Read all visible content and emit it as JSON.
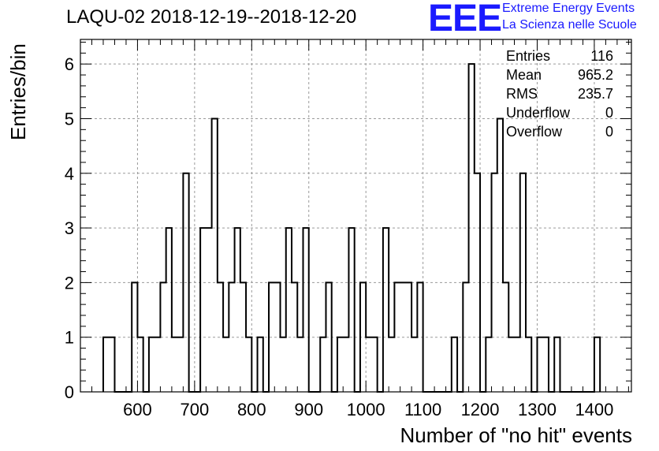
{
  "chart_data": {
    "type": "bar",
    "title": "LAQU-02 2018-12-19--2018-12-20",
    "xlabel": "Number of \"no hit\" events",
    "ylabel": "Entries/bin",
    "xlim": [
      500,
      1465
    ],
    "ylim": [
      0,
      6.45
    ],
    "bin_width": 10,
    "grid": true,
    "x_ticks": [
      600,
      700,
      800,
      900,
      1000,
      1100,
      1200,
      1300,
      1400
    ],
    "y_ticks": [
      0,
      1,
      2,
      3,
      4,
      5,
      6
    ],
    "bins": [
      {
        "x": 540,
        "y": 1
      },
      {
        "x": 550,
        "y": 1
      },
      {
        "x": 590,
        "y": 2
      },
      {
        "x": 600,
        "y": 1
      },
      {
        "x": 620,
        "y": 1
      },
      {
        "x": 630,
        "y": 1
      },
      {
        "x": 640,
        "y": 2
      },
      {
        "x": 650,
        "y": 3
      },
      {
        "x": 660,
        "y": 1
      },
      {
        "x": 670,
        "y": 1
      },
      {
        "x": 680,
        "y": 4
      },
      {
        "x": 710,
        "y": 3
      },
      {
        "x": 720,
        "y": 3
      },
      {
        "x": 730,
        "y": 5
      },
      {
        "x": 740,
        "y": 2
      },
      {
        "x": 750,
        "y": 1
      },
      {
        "x": 760,
        "y": 2
      },
      {
        "x": 770,
        "y": 3
      },
      {
        "x": 780,
        "y": 2
      },
      {
        "x": 790,
        "y": 1
      },
      {
        "x": 810,
        "y": 1
      },
      {
        "x": 830,
        "y": 2
      },
      {
        "x": 840,
        "y": 2
      },
      {
        "x": 850,
        "y": 1
      },
      {
        "x": 860,
        "y": 3
      },
      {
        "x": 870,
        "y": 2
      },
      {
        "x": 880,
        "y": 1
      },
      {
        "x": 890,
        "y": 3
      },
      {
        "x": 920,
        "y": 1
      },
      {
        "x": 930,
        "y": 2
      },
      {
        "x": 950,
        "y": 1
      },
      {
        "x": 960,
        "y": 1
      },
      {
        "x": 970,
        "y": 3
      },
      {
        "x": 990,
        "y": 2
      },
      {
        "x": 1000,
        "y": 1
      },
      {
        "x": 1010,
        "y": 1
      },
      {
        "x": 1030,
        "y": 3
      },
      {
        "x": 1040,
        "y": 1
      },
      {
        "x": 1050,
        "y": 2
      },
      {
        "x": 1060,
        "y": 2
      },
      {
        "x": 1070,
        "y": 2
      },
      {
        "x": 1080,
        "y": 1
      },
      {
        "x": 1090,
        "y": 2
      },
      {
        "x": 1150,
        "y": 1
      },
      {
        "x": 1170,
        "y": 2
      },
      {
        "x": 1180,
        "y": 6
      },
      {
        "x": 1190,
        "y": 4
      },
      {
        "x": 1210,
        "y": 1
      },
      {
        "x": 1220,
        "y": 4
      },
      {
        "x": 1230,
        "y": 5
      },
      {
        "x": 1240,
        "y": 2
      },
      {
        "x": 1250,
        "y": 1
      },
      {
        "x": 1260,
        "y": 1
      },
      {
        "x": 1270,
        "y": 4
      },
      {
        "x": 1280,
        "y": 1
      },
      {
        "x": 1300,
        "y": 1
      },
      {
        "x": 1310,
        "y": 1
      },
      {
        "x": 1330,
        "y": 1
      },
      {
        "x": 1400,
        "y": 1
      }
    ]
  },
  "stats": {
    "rows": [
      {
        "label": "Entries",
        "value": "116"
      },
      {
        "label": "Mean",
        "value": "965.2"
      },
      {
        "label": "RMS",
        "value": "235.7"
      },
      {
        "label": "Underflow",
        "value": "0"
      },
      {
        "label": "Overflow",
        "value": "0"
      }
    ]
  },
  "logo": {
    "mark": "EEE",
    "line1": "Extreme Energy Events",
    "line2": "La Scienza nelle Scuole",
    "color": "#1a1aff"
  }
}
